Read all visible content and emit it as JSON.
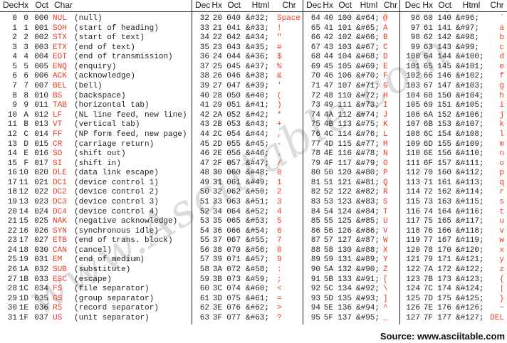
{
  "page": {
    "watermark": "www.Asciitable.com",
    "source_label": "Source:",
    "source_url": "www.asciitable.com"
  },
  "colors": {
    "accent": "#ee3b23",
    "text": "#222222",
    "line": "#222222",
    "watermark": "#dcdcdc"
  },
  "chart_data": [
    {
      "type": "table",
      "headers": [
        "Dec",
        "Hx",
        "Oct",
        "Char"
      ],
      "rows": [
        [
          "0",
          "0",
          "000",
          "NUL",
          "(null)"
        ],
        [
          "1",
          "1",
          "001",
          "SOH",
          "(start of heading)"
        ],
        [
          "2",
          "2",
          "002",
          "STX",
          "(start of text)"
        ],
        [
          "3",
          "3",
          "003",
          "ETX",
          "(end of text)"
        ],
        [
          "4",
          "4",
          "004",
          "EOT",
          "(end of transmission)"
        ],
        [
          "5",
          "5",
          "005",
          "ENQ",
          "(enquiry)"
        ],
        [
          "6",
          "6",
          "006",
          "ACK",
          "(acknowledge)"
        ],
        [
          "7",
          "7",
          "007",
          "BEL",
          "(bell)"
        ],
        [
          "8",
          "8",
          "010",
          "BS",
          "(backspace)"
        ],
        [
          "9",
          "9",
          "011",
          "TAB",
          "(horizontal tab)"
        ],
        [
          "10",
          "A",
          "012",
          "LF",
          "(NL line feed, new line)"
        ],
        [
          "11",
          "B",
          "013",
          "VT",
          "(vertical tab)"
        ],
        [
          "12",
          "C",
          "014",
          "FF",
          "(NP form feed, new page)"
        ],
        [
          "13",
          "D",
          "015",
          "CR",
          "(carriage return)"
        ],
        [
          "14",
          "E",
          "016",
          "SO",
          "(shift out)"
        ],
        [
          "15",
          "F",
          "017",
          "SI",
          "(shift in)"
        ],
        [
          "16",
          "10",
          "020",
          "DLE",
          "(data link escape)"
        ],
        [
          "17",
          "11",
          "021",
          "DC1",
          "(device control 1)"
        ],
        [
          "18",
          "12",
          "022",
          "DC2",
          "(device control 2)"
        ],
        [
          "19",
          "13",
          "023",
          "DC3",
          "(device control 3)"
        ],
        [
          "20",
          "14",
          "024",
          "DC4",
          "(device control 4)"
        ],
        [
          "21",
          "15",
          "025",
          "NAK",
          "(negative acknowledge)"
        ],
        [
          "22",
          "16",
          "026",
          "SYN",
          "(synchronous idle)"
        ],
        [
          "23",
          "17",
          "027",
          "ETB",
          "(end of trans. block)"
        ],
        [
          "24",
          "18",
          "030",
          "CAN",
          "(cancel)"
        ],
        [
          "25",
          "19",
          "031",
          "EM",
          "(end of medium)"
        ],
        [
          "26",
          "1A",
          "032",
          "SUB",
          "(substitute)"
        ],
        [
          "27",
          "1B",
          "033",
          "ESC",
          "(escape)"
        ],
        [
          "28",
          "1C",
          "034",
          "FS",
          "(file separator)"
        ],
        [
          "29",
          "1D",
          "035",
          "GS",
          "(group separator)"
        ],
        [
          "30",
          "1E",
          "036",
          "RS",
          "(record separator)"
        ],
        [
          "31",
          "1F",
          "037",
          "US",
          "(unit separator)"
        ]
      ]
    },
    {
      "type": "table",
      "headers": [
        "Dec",
        "Hx",
        "Oct",
        "Html",
        "Chr"
      ],
      "rows": [
        [
          "32",
          "20",
          "040",
          "&#32;",
          "Space"
        ],
        [
          "33",
          "21",
          "041",
          "&#33;",
          "!"
        ],
        [
          "34",
          "22",
          "042",
          "&#34;",
          "\""
        ],
        [
          "35",
          "23",
          "043",
          "&#35;",
          "#"
        ],
        [
          "36",
          "24",
          "044",
          "&#36;",
          "$"
        ],
        [
          "37",
          "25",
          "045",
          "&#37;",
          "%"
        ],
        [
          "38",
          "26",
          "046",
          "&#38;",
          "&"
        ],
        [
          "39",
          "27",
          "047",
          "&#39;",
          "'"
        ],
        [
          "40",
          "28",
          "050",
          "&#40;",
          "("
        ],
        [
          "41",
          "29",
          "051",
          "&#41;",
          ")"
        ],
        [
          "42",
          "2A",
          "052",
          "&#42;",
          "*"
        ],
        [
          "43",
          "2B",
          "053",
          "&#43;",
          "+"
        ],
        [
          "44",
          "2C",
          "054",
          "&#44;",
          ","
        ],
        [
          "45",
          "2D",
          "055",
          "&#45;",
          "-"
        ],
        [
          "46",
          "2E",
          "056",
          "&#46;",
          "."
        ],
        [
          "47",
          "2F",
          "057",
          "&#47;",
          "/"
        ],
        [
          "48",
          "30",
          "060",
          "&#48;",
          "0"
        ],
        [
          "49",
          "31",
          "061",
          "&#49;",
          "1"
        ],
        [
          "50",
          "32",
          "062",
          "&#50;",
          "2"
        ],
        [
          "51",
          "33",
          "063",
          "&#51;",
          "3"
        ],
        [
          "52",
          "34",
          "064",
          "&#52;",
          "4"
        ],
        [
          "53",
          "35",
          "065",
          "&#53;",
          "5"
        ],
        [
          "54",
          "36",
          "066",
          "&#54;",
          "6"
        ],
        [
          "55",
          "37",
          "067",
          "&#55;",
          "7"
        ],
        [
          "56",
          "38",
          "070",
          "&#56;",
          "8"
        ],
        [
          "57",
          "39",
          "071",
          "&#57;",
          "9"
        ],
        [
          "58",
          "3A",
          "072",
          "&#58;",
          ":"
        ],
        [
          "59",
          "3B",
          "073",
          "&#59;",
          ";"
        ],
        [
          "60",
          "3C",
          "074",
          "&#60;",
          "<"
        ],
        [
          "61",
          "3D",
          "075",
          "&#61;",
          "="
        ],
        [
          "62",
          "3E",
          "076",
          "&#62;",
          ">"
        ],
        [
          "63",
          "3F",
          "077",
          "&#63;",
          "?"
        ]
      ]
    },
    {
      "type": "table",
      "headers": [
        "Dec",
        "Hx",
        "Oct",
        "Html",
        "Chr"
      ],
      "rows": [
        [
          "64",
          "40",
          "100",
          "&#64;",
          "@"
        ],
        [
          "65",
          "41",
          "101",
          "&#65;",
          "A"
        ],
        [
          "66",
          "42",
          "102",
          "&#66;",
          "B"
        ],
        [
          "67",
          "43",
          "103",
          "&#67;",
          "C"
        ],
        [
          "68",
          "44",
          "104",
          "&#68;",
          "D"
        ],
        [
          "69",
          "45",
          "105",
          "&#69;",
          "E"
        ],
        [
          "70",
          "46",
          "106",
          "&#70;",
          "F"
        ],
        [
          "71",
          "47",
          "107",
          "&#71;",
          "G"
        ],
        [
          "72",
          "48",
          "110",
          "&#72;",
          "H"
        ],
        [
          "73",
          "49",
          "111",
          "&#73;",
          "I"
        ],
        [
          "74",
          "4A",
          "112",
          "&#74;",
          "J"
        ],
        [
          "75",
          "4B",
          "113",
          "&#75;",
          "K"
        ],
        [
          "76",
          "4C",
          "114",
          "&#76;",
          "L"
        ],
        [
          "77",
          "4D",
          "115",
          "&#77;",
          "M"
        ],
        [
          "78",
          "4E",
          "116",
          "&#78;",
          "N"
        ],
        [
          "79",
          "4F",
          "117",
          "&#79;",
          "O"
        ],
        [
          "80",
          "50",
          "120",
          "&#80;",
          "P"
        ],
        [
          "81",
          "51",
          "121",
          "&#81;",
          "Q"
        ],
        [
          "82",
          "52",
          "122",
          "&#82;",
          "R"
        ],
        [
          "83",
          "53",
          "123",
          "&#83;",
          "S"
        ],
        [
          "84",
          "54",
          "124",
          "&#84;",
          "T"
        ],
        [
          "85",
          "55",
          "125",
          "&#85;",
          "U"
        ],
        [
          "86",
          "56",
          "126",
          "&#86;",
          "V"
        ],
        [
          "87",
          "57",
          "127",
          "&#87;",
          "W"
        ],
        [
          "88",
          "58",
          "130",
          "&#88;",
          "X"
        ],
        [
          "89",
          "59",
          "131",
          "&#89;",
          "Y"
        ],
        [
          "90",
          "5A",
          "132",
          "&#90;",
          "Z"
        ],
        [
          "91",
          "5B",
          "133",
          "&#91;",
          "["
        ],
        [
          "92",
          "5C",
          "134",
          "&#92;",
          "\\"
        ],
        [
          "93",
          "5D",
          "135",
          "&#93;",
          "]"
        ],
        [
          "94",
          "5E",
          "136",
          "&#94;",
          "^"
        ],
        [
          "95",
          "5F",
          "137",
          "&#95;",
          "_"
        ]
      ]
    },
    {
      "type": "table",
      "headers": [
        "Dec",
        "Hx",
        "Oct",
        "Html",
        "Chr"
      ],
      "rows": [
        [
          "96",
          "60",
          "140",
          "&#96;",
          "`"
        ],
        [
          "97",
          "61",
          "141",
          "&#97;",
          "a"
        ],
        [
          "98",
          "62",
          "142",
          "&#98;",
          "b"
        ],
        [
          "99",
          "63",
          "143",
          "&#99;",
          "c"
        ],
        [
          "100",
          "64",
          "144",
          "&#100;",
          "d"
        ],
        [
          "101",
          "65",
          "145",
          "&#101;",
          "e"
        ],
        [
          "102",
          "66",
          "146",
          "&#102;",
          "f"
        ],
        [
          "103",
          "67",
          "147",
          "&#103;",
          "g"
        ],
        [
          "104",
          "68",
          "150",
          "&#104;",
          "h"
        ],
        [
          "105",
          "69",
          "151",
          "&#105;",
          "i"
        ],
        [
          "106",
          "6A",
          "152",
          "&#106;",
          "j"
        ],
        [
          "107",
          "6B",
          "153",
          "&#107;",
          "k"
        ],
        [
          "108",
          "6C",
          "154",
          "&#108;",
          "l"
        ],
        [
          "109",
          "6D",
          "155",
          "&#109;",
          "m"
        ],
        [
          "110",
          "6E",
          "156",
          "&#110;",
          "n"
        ],
        [
          "111",
          "6F",
          "157",
          "&#111;",
          "o"
        ],
        [
          "112",
          "70",
          "160",
          "&#112;",
          "p"
        ],
        [
          "113",
          "71",
          "161",
          "&#113;",
          "q"
        ],
        [
          "114",
          "72",
          "162",
          "&#114;",
          "r"
        ],
        [
          "115",
          "73",
          "163",
          "&#115;",
          "s"
        ],
        [
          "116",
          "74",
          "164",
          "&#116;",
          "t"
        ],
        [
          "117",
          "75",
          "165",
          "&#117;",
          "u"
        ],
        [
          "118",
          "76",
          "166",
          "&#118;",
          "v"
        ],
        [
          "119",
          "77",
          "167",
          "&#119;",
          "w"
        ],
        [
          "120",
          "78",
          "170",
          "&#120;",
          "x"
        ],
        [
          "121",
          "79",
          "171",
          "&#121;",
          "y"
        ],
        [
          "122",
          "7A",
          "172",
          "&#122;",
          "z"
        ],
        [
          "123",
          "7B",
          "173",
          "&#123;",
          "{"
        ],
        [
          "124",
          "7C",
          "174",
          "&#124;",
          "|"
        ],
        [
          "125",
          "7D",
          "175",
          "&#125;",
          "}"
        ],
        [
          "126",
          "7E",
          "176",
          "&#126;",
          "~"
        ],
        [
          "127",
          "7F",
          "177",
          "&#127;",
          "DEL"
        ]
      ]
    }
  ]
}
